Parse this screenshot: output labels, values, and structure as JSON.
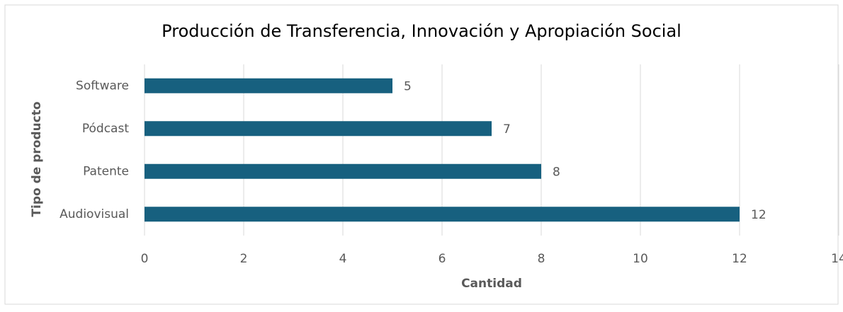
{
  "chart_data": {
    "type": "bar",
    "orientation": "horizontal",
    "title": "Producción de Transferencia, Innovación y Apropiación Social",
    "x_label": "Cantidad",
    "y_label": "Tipo de producto",
    "categories": [
      "Software",
      "Pódcast",
      "Patente",
      "Audiovisual"
    ],
    "values": [
      5,
      7,
      8,
      12
    ],
    "color": "#17607f",
    "xlim": [
      0,
      14
    ],
    "xticks": [
      0,
      2,
      4,
      6,
      8,
      10,
      12,
      14
    ],
    "grid": true
  }
}
